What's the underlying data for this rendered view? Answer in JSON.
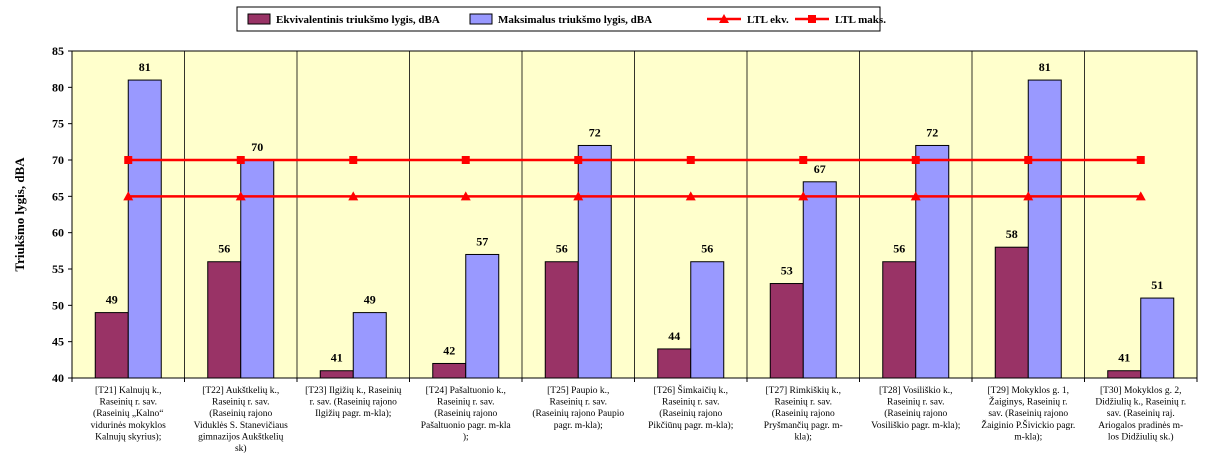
{
  "chart_data": {
    "type": "bar",
    "ylabel": "Triukšmo lygis, dBA",
    "ylim": [
      40,
      85
    ],
    "yticks": [
      40,
      45,
      50,
      55,
      60,
      65,
      70,
      75,
      80,
      85
    ],
    "grid": "vertical-category-separators",
    "legend_placement": "top",
    "categories": [
      [
        "[T21] Kalnujų k.,",
        "Raseinių r. sav.",
        "(Raseinių „Kalno“",
        "vidurinės mokyklos",
        "Kalnujų skyrius);"
      ],
      [
        "[T22] Aukštkelių k.,",
        "Raseinių r. sav.",
        "(Raseinių rajono",
        "Viduklės S. Stanevičiaus",
        "gimnazijos Aukštkelių",
        "sk)"
      ],
      [
        "[T23] Ilgižių k., Raseinių",
        "r. sav. (Raseinių rajono",
        "Ilgižių pagr. m-kla);"
      ],
      [
        "[T24] Pašaltuonio k.,",
        "Raseinių r. sav.",
        "(Raseinių rajono",
        "Pašaltuonio pagr. m-kla",
        ");"
      ],
      [
        "[T25] Paupio k.,",
        "Raseinių r. sav.",
        "(Raseinių rajono Paupio",
        "pagr. m-kla);"
      ],
      [
        "[T26] Šimkaičių k.,",
        "Raseinių r. sav.",
        "(Raseinių rajono",
        "Pikčiūnų pagr. m-kla);"
      ],
      [
        "[T27] Rimkiškių k.,",
        "Raseinių r. sav.",
        "(Raseinių rajono",
        "Pryšmančių pagr. m-",
        "kla);"
      ],
      [
        "[T28] Vosiliškio k.,",
        "Raseinių r. sav.",
        "(Raseinių rajono",
        "Vosiliškio pagr. m-kla);"
      ],
      [
        "[T29] Mokyklos g. 1,",
        "Žaiginys, Raseinių r.",
        "sav. (Raseinių rajono",
        "Žaiginio P.Šivickio pagr.",
        "m-kla);"
      ],
      [
        "[T30] Mokyklos g. 2,",
        "Didžiulių k., Raseinių r.",
        "sav. (Raseinių raj.",
        "Ariogalos pradinės m-",
        "los Didžiulių sk.)"
      ]
    ],
    "series": [
      {
        "name": "Ekvivalentinis triukšmo lygis, dBA",
        "kind": "bar",
        "color": "#993366",
        "values": [
          49,
          56,
          41,
          42,
          56,
          44,
          53,
          56,
          58,
          41
        ]
      },
      {
        "name": "Maksimalus triukšmo lygis, dBA",
        "kind": "bar",
        "color": "#9999ff",
        "values": [
          81,
          70,
          49,
          57,
          72,
          56,
          67,
          72,
          81,
          51
        ]
      },
      {
        "name": "LTL ekv.",
        "kind": "line",
        "marker": "triangle",
        "color": "#ff0000",
        "values": [
          65,
          65,
          65,
          65,
          65,
          65,
          65,
          65,
          65,
          65
        ]
      },
      {
        "name": "LTL maks.",
        "kind": "line",
        "marker": "square",
        "color": "#ff0000",
        "values": [
          70,
          70,
          70,
          70,
          70,
          70,
          70,
          70,
          70,
          70
        ]
      }
    ],
    "plot_background": "#ffffcc"
  }
}
